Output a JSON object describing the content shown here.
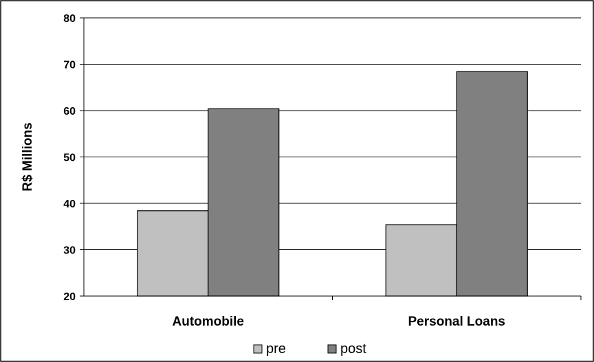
{
  "chart_data": {
    "type": "bar",
    "title": "",
    "xlabel": "",
    "ylabel": "R$ Millions",
    "ylim": [
      20,
      80
    ],
    "yticks": [
      20,
      30,
      40,
      50,
      60,
      70,
      80
    ],
    "grid": true,
    "legend_position": "bottom",
    "categories": [
      "Automobile",
      "Personal Loans"
    ],
    "series": [
      {
        "name": "pre",
        "color": "#c0c0c0",
        "values": [
          38.4,
          35.4
        ]
      },
      {
        "name": "post",
        "color": "#808080",
        "values": [
          60.4,
          68.4
        ]
      }
    ]
  }
}
